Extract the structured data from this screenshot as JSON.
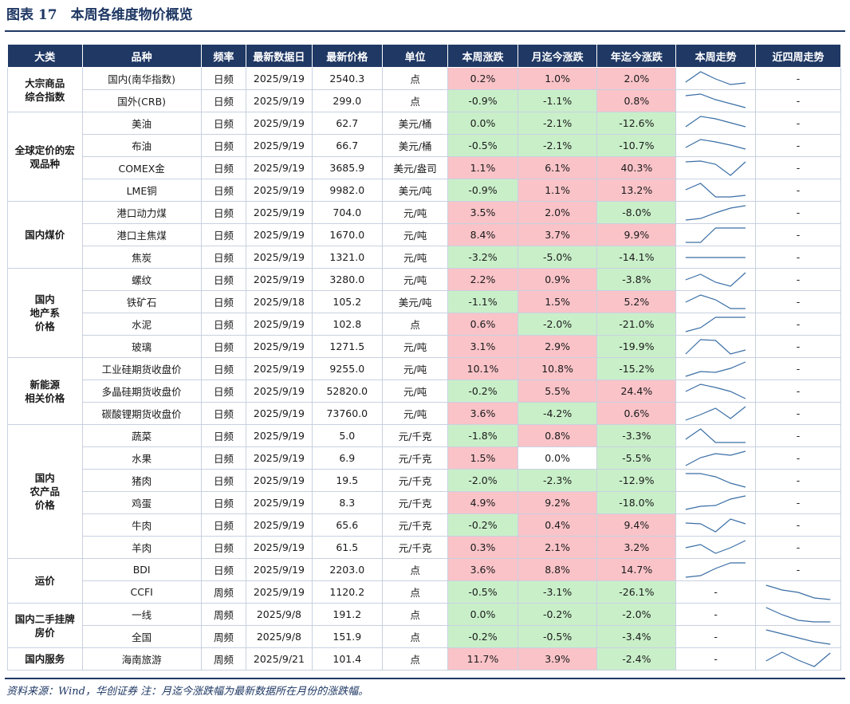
{
  "title": "图表 17　本周各维度物价概览",
  "headers": [
    "大类",
    "品种",
    "频率",
    "最新数据日",
    "最新价格",
    "单位",
    "本周涨跌",
    "月迄今涨跌",
    "年迄今涨跌",
    "本周走势",
    "近四周走势"
  ],
  "colors": {
    "header_bg": "#1f3864",
    "positive_bg": "#f9c3c8",
    "negative_bg": "#c9efc9",
    "line": "#3a6ea5"
  },
  "groups": [
    {
      "category": "大宗商品\n综合指数",
      "rows": [
        {
          "name": "国内(南华指数)",
          "freq": "日频",
          "date": "2025/9/19",
          "price": "2540.3",
          "unit": "点",
          "wk": "0.2%",
          "mtd": "1.0%",
          "ytd": "2.0%",
          "weekly_trend": [
            0.3,
            0.95,
            0.5,
            0.15,
            0.25
          ],
          "four_week_trend": null
        },
        {
          "name": "国外(CRB)",
          "freq": "日频",
          "date": "2025/9/19",
          "price": "299.0",
          "unit": "点",
          "wk": "-0.9%",
          "mtd": "-1.1%",
          "ytd": "0.8%",
          "weekly_trend": [
            0.85,
            0.95,
            0.6,
            0.35,
            0.1
          ],
          "four_week_trend": null
        }
      ]
    },
    {
      "category": "全球定价的宏\n观品种",
      "rows": [
        {
          "name": "美油",
          "freq": "日频",
          "date": "2025/9/19",
          "price": "62.7",
          "unit": "美元/桶",
          "wk": "0.0%",
          "mtd": "-2.1%",
          "ytd": "-12.6%",
          "weekly_trend": [
            0.3,
            0.95,
            0.8,
            0.55,
            0.3
          ],
          "four_week_trend": null
        },
        {
          "name": "布油",
          "freq": "日频",
          "date": "2025/9/19",
          "price": "66.7",
          "unit": "美元/桶",
          "wk": "-0.5%",
          "mtd": "-2.1%",
          "ytd": "-10.7%",
          "weekly_trend": [
            0.4,
            0.9,
            0.75,
            0.55,
            0.3
          ],
          "four_week_trend": null
        },
        {
          "name": "COMEX金",
          "freq": "日频",
          "date": "2025/9/19",
          "price": "3685.9",
          "unit": "美元/盎司",
          "wk": "1.1%",
          "mtd": "6.1%",
          "ytd": "40.3%",
          "weekly_trend": [
            0.9,
            0.95,
            0.75,
            0.05,
            0.9
          ],
          "four_week_trend": null
        },
        {
          "name": "LME铜",
          "freq": "日频",
          "date": "2025/9/19",
          "price": "9982.0",
          "unit": "美元/吨",
          "wk": "-0.9%",
          "mtd": "1.1%",
          "ytd": "13.2%",
          "weekly_trend": [
            0.55,
            0.95,
            0.1,
            0.1,
            0.2
          ],
          "four_week_trend": null
        }
      ]
    },
    {
      "category": "国内煤价",
      "rows": [
        {
          "name": "港口动力煤",
          "freq": "日频",
          "date": "2025/9/19",
          "price": "704.0",
          "unit": "元/吨",
          "wk": "3.5%",
          "mtd": "2.0%",
          "ytd": "-8.0%",
          "weekly_trend": [
            0.05,
            0.15,
            0.5,
            0.8,
            0.95
          ],
          "four_week_trend": null
        },
        {
          "name": "港口主焦煤",
          "freq": "日频",
          "date": "2025/9/19",
          "price": "1670.0",
          "unit": "元/吨",
          "wk": "8.4%",
          "mtd": "3.7%",
          "ytd": "9.9%",
          "weekly_trend": [
            0.05,
            0.05,
            0.95,
            0.95,
            0.95
          ],
          "four_week_trend": null
        },
        {
          "name": "焦炭",
          "freq": "日频",
          "date": "2025/9/19",
          "price": "1321.0",
          "unit": "元/吨",
          "wk": "-3.2%",
          "mtd": "-5.0%",
          "ytd": "-14.1%",
          "weekly_trend": [
            0.5,
            0.5,
            0.5,
            0.5,
            0.5
          ],
          "four_week_trend": null
        }
      ]
    },
    {
      "category": "国内\n地产系\n价格",
      "rows": [
        {
          "name": "螺纹",
          "freq": "日频",
          "date": "2025/9/19",
          "price": "3280.0",
          "unit": "元/吨",
          "wk": "2.2%",
          "mtd": "0.9%",
          "ytd": "-3.8%",
          "weekly_trend": [
            0.5,
            0.85,
            0.35,
            0.1,
            0.95
          ],
          "four_week_trend": null
        },
        {
          "name": "铁矿石",
          "freq": "日频",
          "date": "2025/9/18",
          "price": "105.2",
          "unit": "美元/吨",
          "wk": "-1.1%",
          "mtd": "1.5%",
          "ytd": "5.2%",
          "weekly_trend": [
            0.5,
            0.95,
            0.65,
            0.1,
            0.1
          ],
          "four_week_trend": null
        },
        {
          "name": "水泥",
          "freq": "日频",
          "date": "2025/9/19",
          "price": "102.8",
          "unit": "点",
          "wk": "0.6%",
          "mtd": "-2.0%",
          "ytd": "-21.0%",
          "weekly_trend": [
            0.05,
            0.3,
            0.95,
            0.95,
            0.95
          ],
          "four_week_trend": null
        },
        {
          "name": "玻璃",
          "freq": "日频",
          "date": "2025/9/19",
          "price": "1271.5",
          "unit": "元/吨",
          "wk": "3.1%",
          "mtd": "2.9%",
          "ytd": "-19.9%",
          "weekly_trend": [
            0.05,
            0.95,
            0.9,
            0.05,
            0.3
          ],
          "four_week_trend": null
        }
      ]
    },
    {
      "category": "新能源\n相关价格",
      "rows": [
        {
          "name": "工业硅期货收盘价",
          "freq": "日频",
          "date": "2025/9/19",
          "price": "9255.0",
          "unit": "元/吨",
          "wk": "10.1%",
          "mtd": "10.8%",
          "ytd": "-15.2%",
          "weekly_trend": [
            0.05,
            0.35,
            0.3,
            0.55,
            0.95
          ],
          "four_week_trend": null
        },
        {
          "name": "多晶硅期货收盘价",
          "freq": "日频",
          "date": "2025/9/19",
          "price": "52820.0",
          "unit": "元/吨",
          "wk": "-0.2%",
          "mtd": "5.5%",
          "ytd": "24.4%",
          "weekly_trend": [
            0.5,
            0.95,
            0.75,
            0.5,
            0.05
          ],
          "four_week_trend": null
        },
        {
          "name": "碳酸锂期货收盘价",
          "freq": "日频",
          "date": "2025/9/19",
          "price": "73760.0",
          "unit": "元/吨",
          "wk": "3.6%",
          "mtd": "-4.2%",
          "ytd": "0.6%",
          "weekly_trend": [
            0.1,
            0.45,
            0.85,
            0.2,
            0.95
          ],
          "four_week_trend": null
        }
      ]
    },
    {
      "category": "国内\n农产品\n价格",
      "rows": [
        {
          "name": "蔬菜",
          "freq": "日频",
          "date": "2025/9/19",
          "price": "5.0",
          "unit": "元/千克",
          "wk": "-1.8%",
          "mtd": "0.8%",
          "ytd": "-3.3%",
          "weekly_trend": [
            0.3,
            0.95,
            0.1,
            0.1,
            0.1
          ],
          "four_week_trend": null
        },
        {
          "name": "水果",
          "freq": "日频",
          "date": "2025/9/19",
          "price": "6.9",
          "unit": "元/千克",
          "wk": "1.5%",
          "mtd": "0.0%",
          "ytd": "-5.5%",
          "weekly_trend": [
            0.05,
            0.55,
            0.8,
            0.7,
            0.95
          ],
          "four_week_trend": null
        },
        {
          "name": "猪肉",
          "freq": "日频",
          "date": "2025/9/19",
          "price": "19.5",
          "unit": "元/千克",
          "wk": "-2.0%",
          "mtd": "-2.3%",
          "ytd": "-12.9%",
          "weekly_trend": [
            0.95,
            0.95,
            0.75,
            0.35,
            0.1
          ],
          "four_week_trend": null
        },
        {
          "name": "鸡蛋",
          "freq": "日频",
          "date": "2025/9/19",
          "price": "8.3",
          "unit": "元/千克",
          "wk": "4.9%",
          "mtd": "9.2%",
          "ytd": "-18.0%",
          "weekly_trend": [
            0.1,
            0.3,
            0.35,
            0.75,
            0.95
          ],
          "four_week_trend": null
        },
        {
          "name": "牛肉",
          "freq": "日频",
          "date": "2025/9/19",
          "price": "65.6",
          "unit": "元/千克",
          "wk": "-0.2%",
          "mtd": "0.4%",
          "ytd": "9.4%",
          "weekly_trend": [
            0.65,
            0.6,
            0.1,
            0.9,
            0.6
          ],
          "four_week_trend": null
        },
        {
          "name": "羊肉",
          "freq": "日频",
          "date": "2025/9/19",
          "price": "61.5",
          "unit": "元/千克",
          "wk": "0.3%",
          "mtd": "2.1%",
          "ytd": "3.2%",
          "weekly_trend": [
            0.5,
            0.7,
            0.15,
            0.5,
            0.95
          ],
          "four_week_trend": null
        }
      ]
    },
    {
      "category": "运价",
      "rows": [
        {
          "name": "BDI",
          "freq": "日频",
          "date": "2025/9/19",
          "price": "2203.0",
          "unit": "点",
          "wk": "3.6%",
          "mtd": "8.8%",
          "ytd": "14.7%",
          "weekly_trend": [
            0.05,
            0.15,
            0.6,
            0.95,
            0.95
          ],
          "four_week_trend": null
        },
        {
          "name": "CCFI",
          "freq": "周频",
          "date": "2025/9/19",
          "price": "1120.2",
          "unit": "点",
          "wk": "-0.5%",
          "mtd": "-3.1%",
          "ytd": "-26.1%",
          "weekly_trend": null,
          "four_week_trend": [
            0.95,
            0.65,
            0.5,
            0.15,
            0.05
          ]
        }
      ]
    },
    {
      "category": "国内二手挂牌\n房价",
      "rows": [
        {
          "name": "一线",
          "freq": "周频",
          "date": "2025/9/8",
          "price": "191.2",
          "unit": "点",
          "wk": "0.0%",
          "mtd": "-0.2%",
          "ytd": "-2.0%",
          "weekly_trend": null,
          "four_week_trend": [
            0.95,
            0.5,
            0.15,
            0.05,
            0.05
          ]
        },
        {
          "name": "全国",
          "freq": "周频",
          "date": "2025/9/8",
          "price": "151.9",
          "unit": "点",
          "wk": "-0.2%",
          "mtd": "-0.5%",
          "ytd": "-3.4%",
          "weekly_trend": null,
          "four_week_trend": [
            0.95,
            0.7,
            0.45,
            0.2,
            0.05
          ]
        }
      ]
    },
    {
      "category": "国内服务",
      "rows": [
        {
          "name": "海南旅游",
          "freq": "周频",
          "date": "2025/9/21",
          "price": "101.4",
          "unit": "点",
          "wk": "11.7%",
          "mtd": "3.9%",
          "ytd": "-2.4%",
          "weekly_trend": null,
          "four_week_trend": [
            0.4,
            0.95,
            0.45,
            0.05,
            0.9
          ]
        }
      ]
    }
  ],
  "dash": "-",
  "source_note": "资料来源：Wind，华创证券 注：月迄今涨跌幅为最新数据所在月份的涨跌幅。"
}
